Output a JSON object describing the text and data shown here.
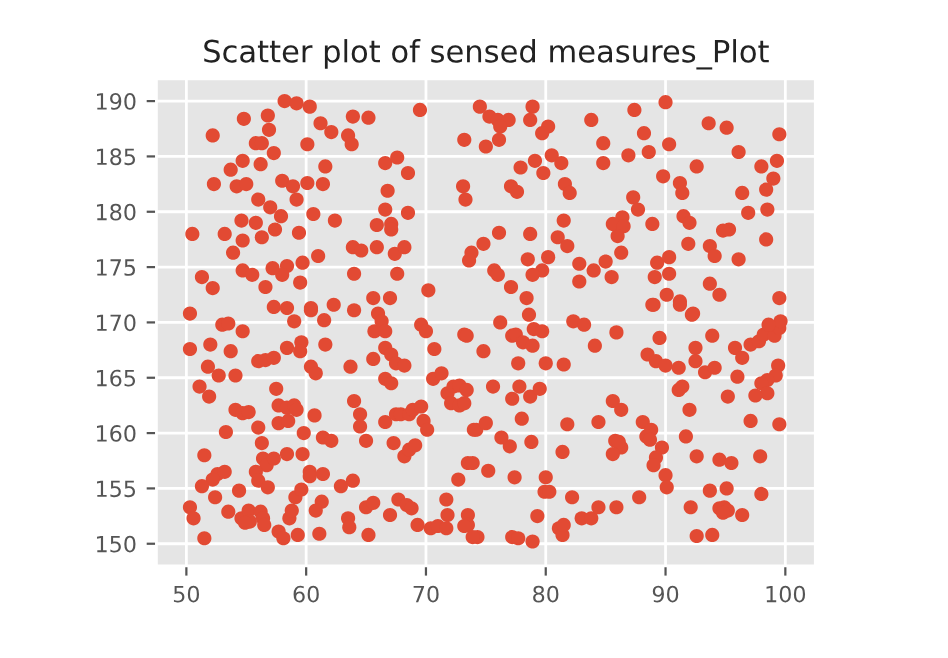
{
  "chart_data": {
    "type": "scatter",
    "title": "Scatter plot of sensed measures_Plot",
    "color": "#e24a33",
    "marker": "circle",
    "grid": true,
    "xlim": [
      47.5,
      102.5
    ],
    "ylim": [
      148,
      192
    ],
    "xticks": [
      50,
      60,
      70,
      80,
      90,
      100
    ],
    "yticks": [
      150,
      155,
      160,
      165,
      170,
      175,
      180,
      185,
      190
    ],
    "x": [
      50.5,
      52.2,
      52.3,
      51.3,
      52.2,
      50.3,
      54.8,
      54.7,
      53.7,
      54.2,
      55.0,
      56.0,
      54.6,
      53.2,
      54.7,
      53.9,
      54.7,
      55.5,
      56.9,
      55.8,
      56.3,
      57.3,
      56.2,
      56.8,
      58.2,
      59.2,
      60.3,
      61.2,
      62.1,
      60.1,
      61.6,
      58.0,
      58.9,
      60.1,
      61.4,
      59.2,
      57.0,
      57.9,
      55.8,
      56.3,
      57.4,
      59.4,
      60.6,
      62.4,
      61.0,
      58.4,
      59.7,
      58.0,
      57.2,
      59.5,
      56.6,
      57.3,
      58.4,
      60.4,
      62.3,
      64.0,
      63.5,
      63.8,
      63.9,
      65.2,
      63.9,
      64.6,
      65.9,
      64.0,
      65.6,
      67.0,
      65.9,
      67.1,
      66.6,
      68.5,
      67.1,
      67.4,
      68.2,
      66.6,
      67.6,
      68.5,
      66.8,
      67.6,
      70.2,
      69.5,
      74.5,
      75.3,
      76.0,
      76.9,
      76.2,
      73.2,
      75.0,
      76.1,
      78.9,
      78.7,
      80.2,
      79.7,
      80.5,
      81.3,
      79.1,
      77.9,
      79.8,
      83.8,
      84.8,
      84.8,
      87.4,
      88.2,
      86.9,
      88.6,
      90.0,
      90.3,
      89.8,
      91.2,
      91.4,
      92.6,
      93.6,
      95.1,
      96.1,
      98.0,
      99.5,
      99.3,
      99.0,
      98.4,
      96.4,
      77.1,
      77.6,
      81.6,
      82.0,
      73.1,
      73.3,
      87.3,
      87.7,
      86.4,
      85.6,
      86.5,
      86.0,
      88.9,
      91.5,
      92.0,
      95.3,
      94.8,
      96.9,
      98.5,
      98.4,
      93.7,
      94.1,
      91.9,
      96.1,
      81.5,
      76.1,
      74.8,
      78.7,
      81.0,
      81.8,
      73.8,
      73.6,
      78.5,
      80.2,
      79.7,
      78.9,
      75.7,
      76.0,
      82.8,
      84.0,
      85.0,
      85.5,
      86.3,
      89.3,
      90.3,
      89.1,
      90.3,
      82.8,
      77.1,
      93.7,
      94.5,
      90.1,
      91.2,
      92.3,
      89.0,
      78.4,
      78.6,
      99.5,
      50.3,
      52.0,
      53.0,
      53.5,
      54.7,
      53.7,
      51.8,
      52.7,
      51.1,
      51.9,
      54.1,
      56.0,
      56.6,
      57.3,
      58.4,
      59.6,
      59.5,
      59.0,
      60.4,
      61.5,
      60.4,
      60.8,
      61.6,
      57.5,
      57.7,
      58.4,
      59.0,
      59.2,
      57.7,
      58.5,
      59.8,
      60.7,
      61.4,
      62.1,
      54.1,
      54.7,
      55.2,
      56.0,
      56.3,
      53.3,
      51.5,
      56.4,
      56.7,
      57.3,
      58.4,
      59.7,
      60.3,
      60.3,
      61.4,
      52.6,
      53.2,
      52.2,
      51.3,
      54.4,
      55.8,
      56.0,
      56.8,
      52.4,
      53.5,
      50.3,
      50.6,
      51.5,
      54.6,
      55.2,
      55.3,
      54.9,
      56.2,
      56.4,
      56.5,
      57.7,
      58.1,
      58.6,
      58.8,
      59.3,
      59.1,
      59.6,
      61.3,
      60.8,
      61.1,
      62.9,
      63.9,
      63.5,
      63.6,
      65.0,
      65.6,
      65.2,
      67.0,
      67.7,
      68.4,
      68.8,
      69.3,
      70.4,
      71.0,
      71.7,
      71.8,
      71.7,
      72.7,
      73.5,
      73.5,
      74.3,
      63.7,
      64.0,
      64.5,
      64.5,
      65.0,
      65.6,
      66.0,
      65.7,
      66.3,
      66.6,
      66.6,
      67.1,
      67.5,
      68.2,
      66.6,
      67.1,
      66.6,
      67.5,
      67.9,
      68.6,
      68.9,
      67.3,
      68.2,
      68.6,
      69.1,
      69.8,
      70.1,
      69.6,
      69.6,
      70.0,
      70.7,
      70.6,
      71.3,
      71.8,
      72.3,
      72.8,
      72.1,
      72.8,
      73.2,
      74.0,
      73.5,
      73.9,
      73.4,
      74.8,
      76.2,
      77.2,
      77.5,
      78.1,
      79.0,
      79.7,
      78.9,
      77.7,
      80.0,
      81.5,
      82.3,
      83.2,
      84.1,
      85.9,
      88.5,
      89.2,
      89.5,
      90.0,
      91.1,
      88.9,
      91.2,
      92.2,
      92.5,
      92.5,
      93.3,
      94.1,
      93.9,
      95.8,
      96.4,
      97.1,
      97.8,
      98.2,
      99.1,
      99.5,
      99.6,
      98.6,
      99.4,
      99.2,
      98.5,
      98.0,
      98.5,
      97.5,
      95.2,
      96.0,
      91.1,
      91.4,
      92.0,
      91.7,
      92.6,
      94.5,
      95.5,
      97.1,
      99.5,
      97.9,
      98.0,
      93.7,
      95.1,
      92.1,
      94.5,
      94.9,
      95.2,
      94.8,
      96.4,
      92.6,
      93.9,
      88.1,
      88.8,
      88.4,
      88.7,
      89.7,
      89.2,
      89.0,
      90.0,
      90.1,
      87.8,
      85.6,
      86.3,
      84.4,
      85.8,
      86.3,
      86.1,
      85.6,
      81.8,
      81.4,
      80.0,
      79.9,
      80.3,
      82.2,
      79.3,
      77.2,
      77.7,
      78.9,
      81.1,
      81.4,
      81.5,
      83.0,
      83.8,
      84.4,
      85.9,
      77.4,
      75.2,
      77.0,
      76.3,
      78.8,
      78.0,
      74.2,
      75.0,
      75.6,
      77.2,
      77.8,
      78.7,
      79.5,
      73.4,
      73.2,
      73.9,
      73.2
    ],
    "values": [
      178.0,
      186.9,
      182.5,
      174.1,
      173.1,
      170.8,
      188.4,
      184.6,
      183.8,
      182.3,
      182.5,
      181.1,
      179.2,
      178.0,
      177.4,
      176.3,
      174.7,
      174.3,
      187.4,
      186.2,
      186.2,
      185.3,
      184.3,
      188.7,
      190.0,
      189.8,
      189.5,
      188.0,
      187.2,
      186.1,
      184.1,
      182.8,
      182.3,
      182.6,
      182.5,
      181.1,
      180.4,
      179.6,
      179.0,
      177.7,
      178.4,
      178.1,
      179.8,
      179.2,
      176.0,
      175.1,
      175.4,
      174.3,
      174.9,
      173.6,
      173.2,
      171.4,
      171.3,
      171.1,
      171.6,
      171.1,
      186.9,
      186.1,
      188.6,
      188.5,
      176.8,
      176.5,
      176.8,
      174.4,
      172.2,
      172.2,
      178.8,
      178.9,
      180.2,
      179.9,
      178.4,
      176.2,
      176.8,
      184.4,
      184.9,
      183.5,
      181.9,
      174.4,
      172.9,
      189.2,
      189.5,
      188.6,
      188.3,
      188.3,
      187.7,
      186.5,
      185.9,
      186.5,
      189.5,
      188.3,
      187.7,
      187.1,
      185.1,
      184.4,
      184.6,
      184.0,
      183.5,
      188.3,
      186.2,
      184.4,
      189.2,
      187.1,
      185.1,
      185.4,
      189.9,
      186.1,
      183.2,
      182.6,
      181.7,
      184.1,
      188.0,
      187.6,
      185.4,
      184.1,
      187.0,
      184.6,
      183.0,
      182.0,
      181.7,
      182.3,
      181.8,
      182.5,
      181.7,
      182.3,
      181.1,
      181.3,
      180.2,
      179.5,
      178.9,
      178.7,
      177.8,
      178.9,
      179.6,
      179.0,
      178.4,
      178.3,
      179.9,
      180.2,
      177.5,
      176.9,
      176.0,
      177.1,
      175.7,
      179.2,
      178.1,
      177.1,
      178.0,
      177.7,
      176.9,
      176.3,
      175.6,
      175.7,
      175.9,
      174.7,
      174.3,
      174.7,
      174.3,
      175.3,
      174.7,
      175.5,
      174.1,
      176.3,
      175.4,
      175.9,
      174.1,
      174.4,
      173.7,
      173.2,
      173.5,
      172.5,
      172.5,
      171.9,
      170.8,
      171.6,
      172.2,
      170.7,
      172.2,
      167.6,
      168.0,
      169.8,
      169.9,
      169.2,
      167.4,
      166.0,
      165.2,
      164.2,
      163.3,
      165.2,
      166.5,
      166.6,
      166.8,
      167.7,
      168.2,
      167.4,
      170.1,
      171.3,
      170.2,
      166.0,
      165.4,
      168.0,
      164.0,
      162.5,
      162.3,
      162.5,
      162.1,
      160.9,
      161.1,
      160.0,
      161.6,
      159.6,
      159.3,
      162.1,
      161.8,
      161.9,
      160.5,
      159.1,
      160.1,
      158.0,
      157.7,
      157.1,
      157.7,
      158.1,
      158.1,
      156.5,
      156.1,
      156.3,
      156.3,
      156.5,
      155.8,
      155.2,
      154.8,
      156.5,
      155.7,
      155.1,
      154.2,
      152.9,
      153.3,
      152.3,
      150.5,
      152.3,
      153.0,
      152.0,
      151.9,
      152.9,
      152.3,
      151.7,
      151.1,
      150.5,
      152.3,
      153.0,
      150.8,
      154.2,
      154.9,
      153.8,
      153.0,
      150.9,
      155.2,
      155.7,
      152.3,
      151.5,
      153.3,
      153.7,
      150.8,
      152.6,
      154.0,
      153.5,
      153.2,
      151.7,
      151.4,
      151.6,
      151.4,
      152.6,
      154.0,
      155.8,
      152.6,
      151.7,
      150.6,
      166.0,
      162.9,
      161.7,
      160.6,
      159.3,
      166.7,
      170.8,
      169.2,
      170.1,
      169.2,
      167.7,
      167.1,
      166.3,
      166.1,
      164.9,
      164.5,
      161.0,
      161.7,
      161.7,
      161.7,
      162.1,
      159.1,
      157.9,
      158.5,
      158.9,
      161.1,
      160.3,
      162.4,
      169.8,
      169.2,
      167.6,
      164.9,
      165.4,
      163.6,
      164.2,
      164.3,
      162.7,
      162.5,
      168.9,
      160.3,
      157.3,
      157.3,
      168.8,
      167.4,
      170.0,
      168.8,
      168.9,
      168.2,
      169.4,
      169.2,
      167.9,
      166.3,
      166.3,
      166.2,
      170.1,
      169.8,
      167.9,
      169.1,
      167.1,
      166.5,
      168.6,
      166.1,
      165.9,
      171.6,
      171.6,
      170.7,
      167.7,
      166.5,
      165.5,
      165.9,
      168.8,
      167.7,
      166.8,
      168.0,
      168.3,
      168.9,
      168.8,
      169.5,
      170.1,
      169.8,
      166.1,
      165.2,
      164.8,
      164.5,
      163.6,
      163.4,
      163.3,
      165.1,
      163.9,
      164.2,
      162.1,
      159.7,
      157.9,
      157.6,
      157.3,
      161.1,
      160.8,
      157.9,
      154.5,
      154.8,
      155.0,
      153.3,
      153.2,
      153.3,
      153.0,
      152.8,
      152.6,
      150.7,
      150.8,
      161.0,
      160.3,
      159.7,
      159.4,
      158.7,
      157.8,
      157.1,
      156.2,
      155.1,
      154.2,
      162.9,
      162.1,
      161.0,
      159.3,
      158.7,
      159.2,
      158.1,
      160.8,
      158.3,
      156.0,
      154.7,
      154.7,
      154.2,
      152.5,
      150.6,
      150.5,
      150.2,
      151.4,
      150.8,
      151.7,
      152.3,
      152.3,
      153.3,
      153.3,
      156.0,
      156.6,
      158.8,
      159.6,
      159.2,
      161.3,
      160.3,
      160.9,
      164.2,
      163.1,
      164.2,
      163.3,
      164.0,
      163.9,
      162.7,
      150.6,
      151.6
    ]
  }
}
